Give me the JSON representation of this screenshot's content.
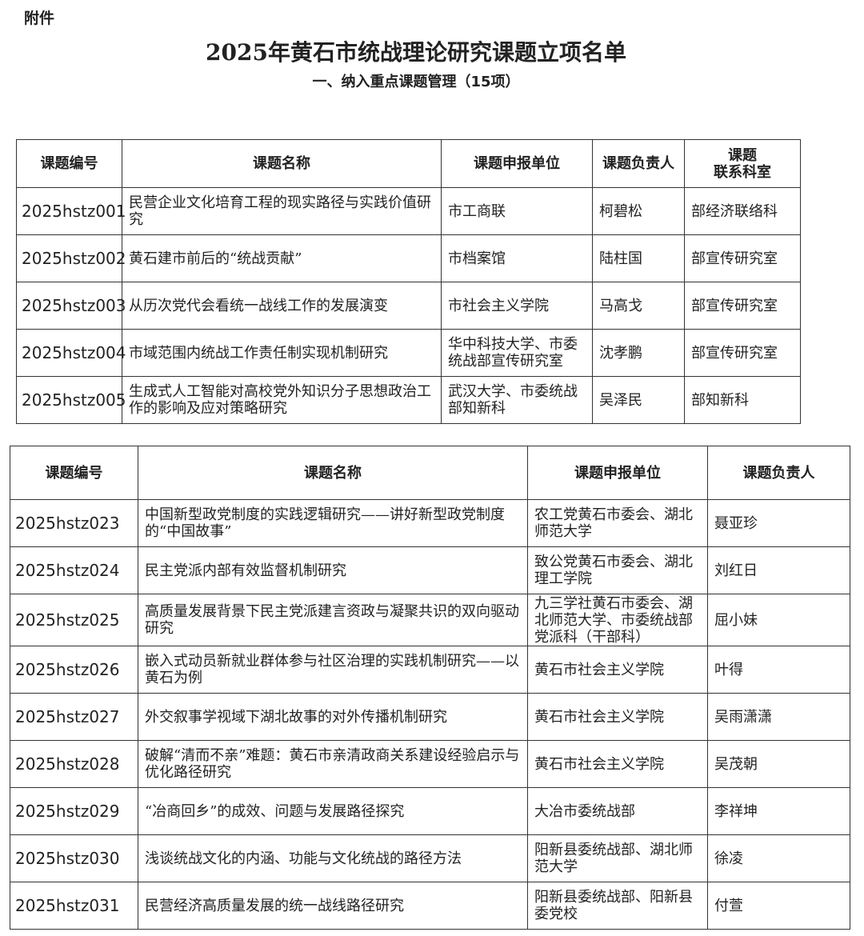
{
  "header": {
    "attachment_label": "附件",
    "title": "2025年黄石市统战理论研究课题立项名单",
    "subtitle": "一、纳入重点课题管理（15项）"
  },
  "table1": {
    "columns": [
      "课题编号",
      "课题名称",
      "课题申报单位",
      "课题负责人",
      "课题\n联系科室"
    ],
    "rows": [
      {
        "code": "2025hstz001",
        "name": "民营企业文化培育工程的现实路径与实践价值研究",
        "unit": "市工商联",
        "leader": "柯碧松",
        "office": "部经济联络科"
      },
      {
        "code": "2025hstz002",
        "name": "黄石建市前后的“统战贡献”",
        "unit": "市档案馆",
        "leader": "陆柱国",
        "office": "部宣传研究室"
      },
      {
        "code": "2025hstz003",
        "name": "从历次党代会看统一战线工作的发展演变",
        "unit": "市社会主义学院",
        "leader": "马高戈",
        "office": "部宣传研究室"
      },
      {
        "code": "2025hstz004",
        "name": "市域范围内统战工作责任制实现机制研究",
        "unit": "华中科技大学、市委统战部宣传研究室",
        "leader": "沈孝鹏",
        "office": "部宣传研究室"
      },
      {
        "code": "2025hstz005",
        "name": "生成式人工智能对高校党外知识分子思想政治工作的影响及应对策略研究",
        "unit": "武汉大学、市委统战部知新科",
        "leader": "吴泽民",
        "office": "部知新科"
      }
    ]
  },
  "table2": {
    "columns": [
      "课题编号",
      "课题名称",
      "课题申报单位",
      "课题负责人"
    ],
    "rows": [
      {
        "code": "2025hstz023",
        "name": "中国新型政党制度的实践逻辑研究——讲好新型政党制度的“中国故事”",
        "unit": "农工党黄石市委会、湖北师范大学",
        "leader": "聂亚珍"
      },
      {
        "code": "2025hstz024",
        "name": "民主党派内部有效监督机制研究",
        "unit": "致公党黄石市委会、湖北理工学院",
        "leader": "刘红日"
      },
      {
        "code": "2025hstz025",
        "name": "高质量发展背景下民主党派建言资政与凝聚共识的双向驱动研究",
        "unit": "九三学社黄石市委会、湖北师范大学、市委统战部党派科（干部科）",
        "leader": "屈小妹"
      },
      {
        "code": "2025hstz026",
        "name": "嵌入式动员新就业群体参与社区治理的实践机制研究——以黄石为例",
        "unit": "黄石市社会主义学院",
        "leader": "叶得"
      },
      {
        "code": "2025hstz027",
        "name": "外交叙事学视域下湖北故事的对外传播机制研究",
        "unit": "黄石市社会主义学院",
        "leader": "吴雨潇潇"
      },
      {
        "code": "2025hstz028",
        "name": "破解“清而不亲”难题：黄石市亲清政商关系建设经验启示与优化路径研究",
        "unit": "黄石市社会主义学院",
        "leader": "吴茂朝"
      },
      {
        "code": "2025hstz029",
        "name": "“冶商回乡”的成效、问题与发展路径探究",
        "unit": "大冶市委统战部",
        "leader": "李祥坤"
      },
      {
        "code": "2025hstz030",
        "name": "浅谈统战文化的内涵、功能与文化统战的路径方法",
        "unit": "阳新县委统战部、湖北师范大学",
        "leader": "徐凌"
      },
      {
        "code": "2025hstz031",
        "name": "民营经济高质量发展的统一战线路径研究",
        "unit": "阳新县委统战部、阳新县委党校",
        "leader": "付萱"
      }
    ]
  }
}
